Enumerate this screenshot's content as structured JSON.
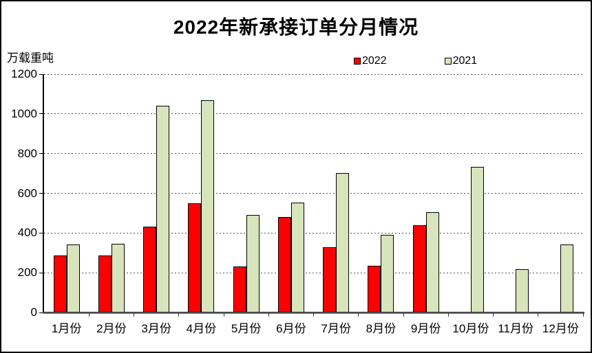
{
  "title": "2022年新承接订单分月情况",
  "unit_label": "万载重吨",
  "colors": {
    "series_2022": "#ff0000",
    "series_2021": "#d8e4bc",
    "bar_border": "#000000",
    "background": "#ffffff",
    "frame_border": "#000000",
    "gridline": "#4d4d4d"
  },
  "chart_data": {
    "type": "bar",
    "title": "2022年新承接订单分月情况",
    "ylabel": "万载重吨",
    "xlabel": "",
    "categories": [
      "1月份",
      "2月份",
      "3月份",
      "4月份",
      "5月份",
      "6月份",
      "7月份",
      "8月份",
      "9月份",
      "10月份",
      "11月份",
      "12月份"
    ],
    "series": [
      {
        "name": "2022",
        "color": "#ff0000",
        "values": [
          284,
          285,
          429,
          545,
          228,
          476,
          326,
          231,
          437,
          null,
          null,
          null
        ]
      },
      {
        "name": "2021",
        "color": "#d8e4bc",
        "values": [
          339,
          342,
          1038,
          1066,
          487,
          549,
          698,
          389,
          502,
          730,
          216,
          338
        ]
      }
    ],
    "ylim": [
      0,
      1200
    ],
    "yticks": [
      0,
      200,
      400,
      600,
      800,
      1000,
      1200
    ],
    "grid": "horizontal-dashed",
    "legend_position": "top-center"
  }
}
